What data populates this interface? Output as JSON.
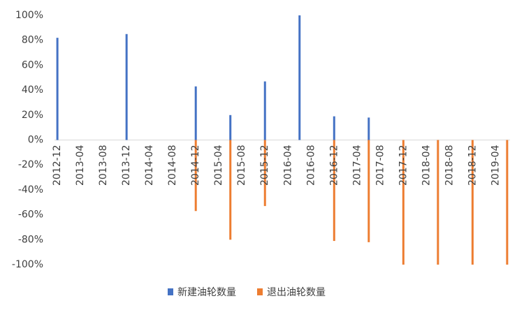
{
  "chart_data": {
    "type": "bar",
    "categories": [
      "2012-12",
      null,
      null,
      null,
      "2013-04",
      null,
      null,
      null,
      "2013-08",
      null,
      null,
      null,
      "2013-12",
      null,
      null,
      null,
      "2014-04",
      null,
      null,
      null,
      "2014-08",
      null,
      null,
      null,
      "2014-12",
      null,
      null,
      null,
      "2015-04",
      null,
      null,
      null,
      "2015-08",
      null,
      null,
      null,
      "2015-12",
      null,
      null,
      null,
      "2016-04",
      null,
      null,
      null,
      "2016-08",
      null,
      null,
      null,
      "2016-12",
      null,
      null,
      null,
      "2017-04",
      null,
      null,
      null,
      "2017-08",
      null,
      null,
      null,
      "2017-12",
      null,
      null,
      null,
      "2018-04",
      null,
      null,
      null,
      "2018-08",
      null,
      null,
      null,
      "2018-12",
      null,
      null,
      null,
      "2019-04",
      null,
      null
    ],
    "series": [
      {
        "name": "新建油轮数量",
        "color": "#4472c4",
        "values": [
          82,
          null,
          null,
          null,
          null,
          null,
          null,
          null,
          null,
          null,
          null,
          null,
          85,
          null,
          null,
          null,
          null,
          null,
          null,
          null,
          null,
          null,
          null,
          null,
          43,
          null,
          null,
          null,
          null,
          null,
          20,
          null,
          null,
          null,
          null,
          null,
          47,
          null,
          null,
          null,
          null,
          null,
          100,
          null,
          null,
          null,
          null,
          null,
          19,
          null,
          null,
          null,
          null,
          null,
          18,
          null,
          null,
          null,
          null,
          null,
          null,
          null,
          null,
          null,
          null,
          null,
          null,
          null,
          null,
          null,
          null,
          null,
          null,
          null,
          null,
          null,
          null,
          null,
          null
        ]
      },
      {
        "name": "退出油轮数量",
        "color": "#ed7d31",
        "values": [
          null,
          null,
          null,
          null,
          null,
          null,
          null,
          null,
          null,
          null,
          null,
          null,
          null,
          null,
          null,
          null,
          null,
          null,
          null,
          null,
          null,
          null,
          null,
          null,
          -57,
          null,
          null,
          null,
          null,
          null,
          -80,
          null,
          null,
          null,
          null,
          null,
          -53,
          null,
          null,
          null,
          null,
          null,
          null,
          null,
          null,
          null,
          null,
          null,
          -81,
          null,
          null,
          null,
          null,
          null,
          -82,
          null,
          null,
          null,
          null,
          null,
          -100,
          null,
          null,
          null,
          null,
          null,
          -100,
          null,
          null,
          null,
          null,
          null,
          -100,
          null,
          null,
          null,
          null,
          null,
          -100
        ]
      }
    ],
    "ylim": [
      -100,
      100
    ],
    "yticks": [
      {
        "value": -100,
        "label": "-100%"
      },
      {
        "value": -80,
        "label": "-80%"
      },
      {
        "value": -60,
        "label": "-60%"
      },
      {
        "value": -40,
        "label": "-40%"
      },
      {
        "value": -20,
        "label": "-20%"
      },
      {
        "value": 0,
        "label": "0%"
      },
      {
        "value": 20,
        "label": "20%"
      },
      {
        "value": 40,
        "label": "40%"
      },
      {
        "value": 60,
        "label": "60%"
      },
      {
        "value": 80,
        "label": "80%"
      },
      {
        "value": 100,
        "label": "100%"
      }
    ],
    "legend": "bottom"
  }
}
